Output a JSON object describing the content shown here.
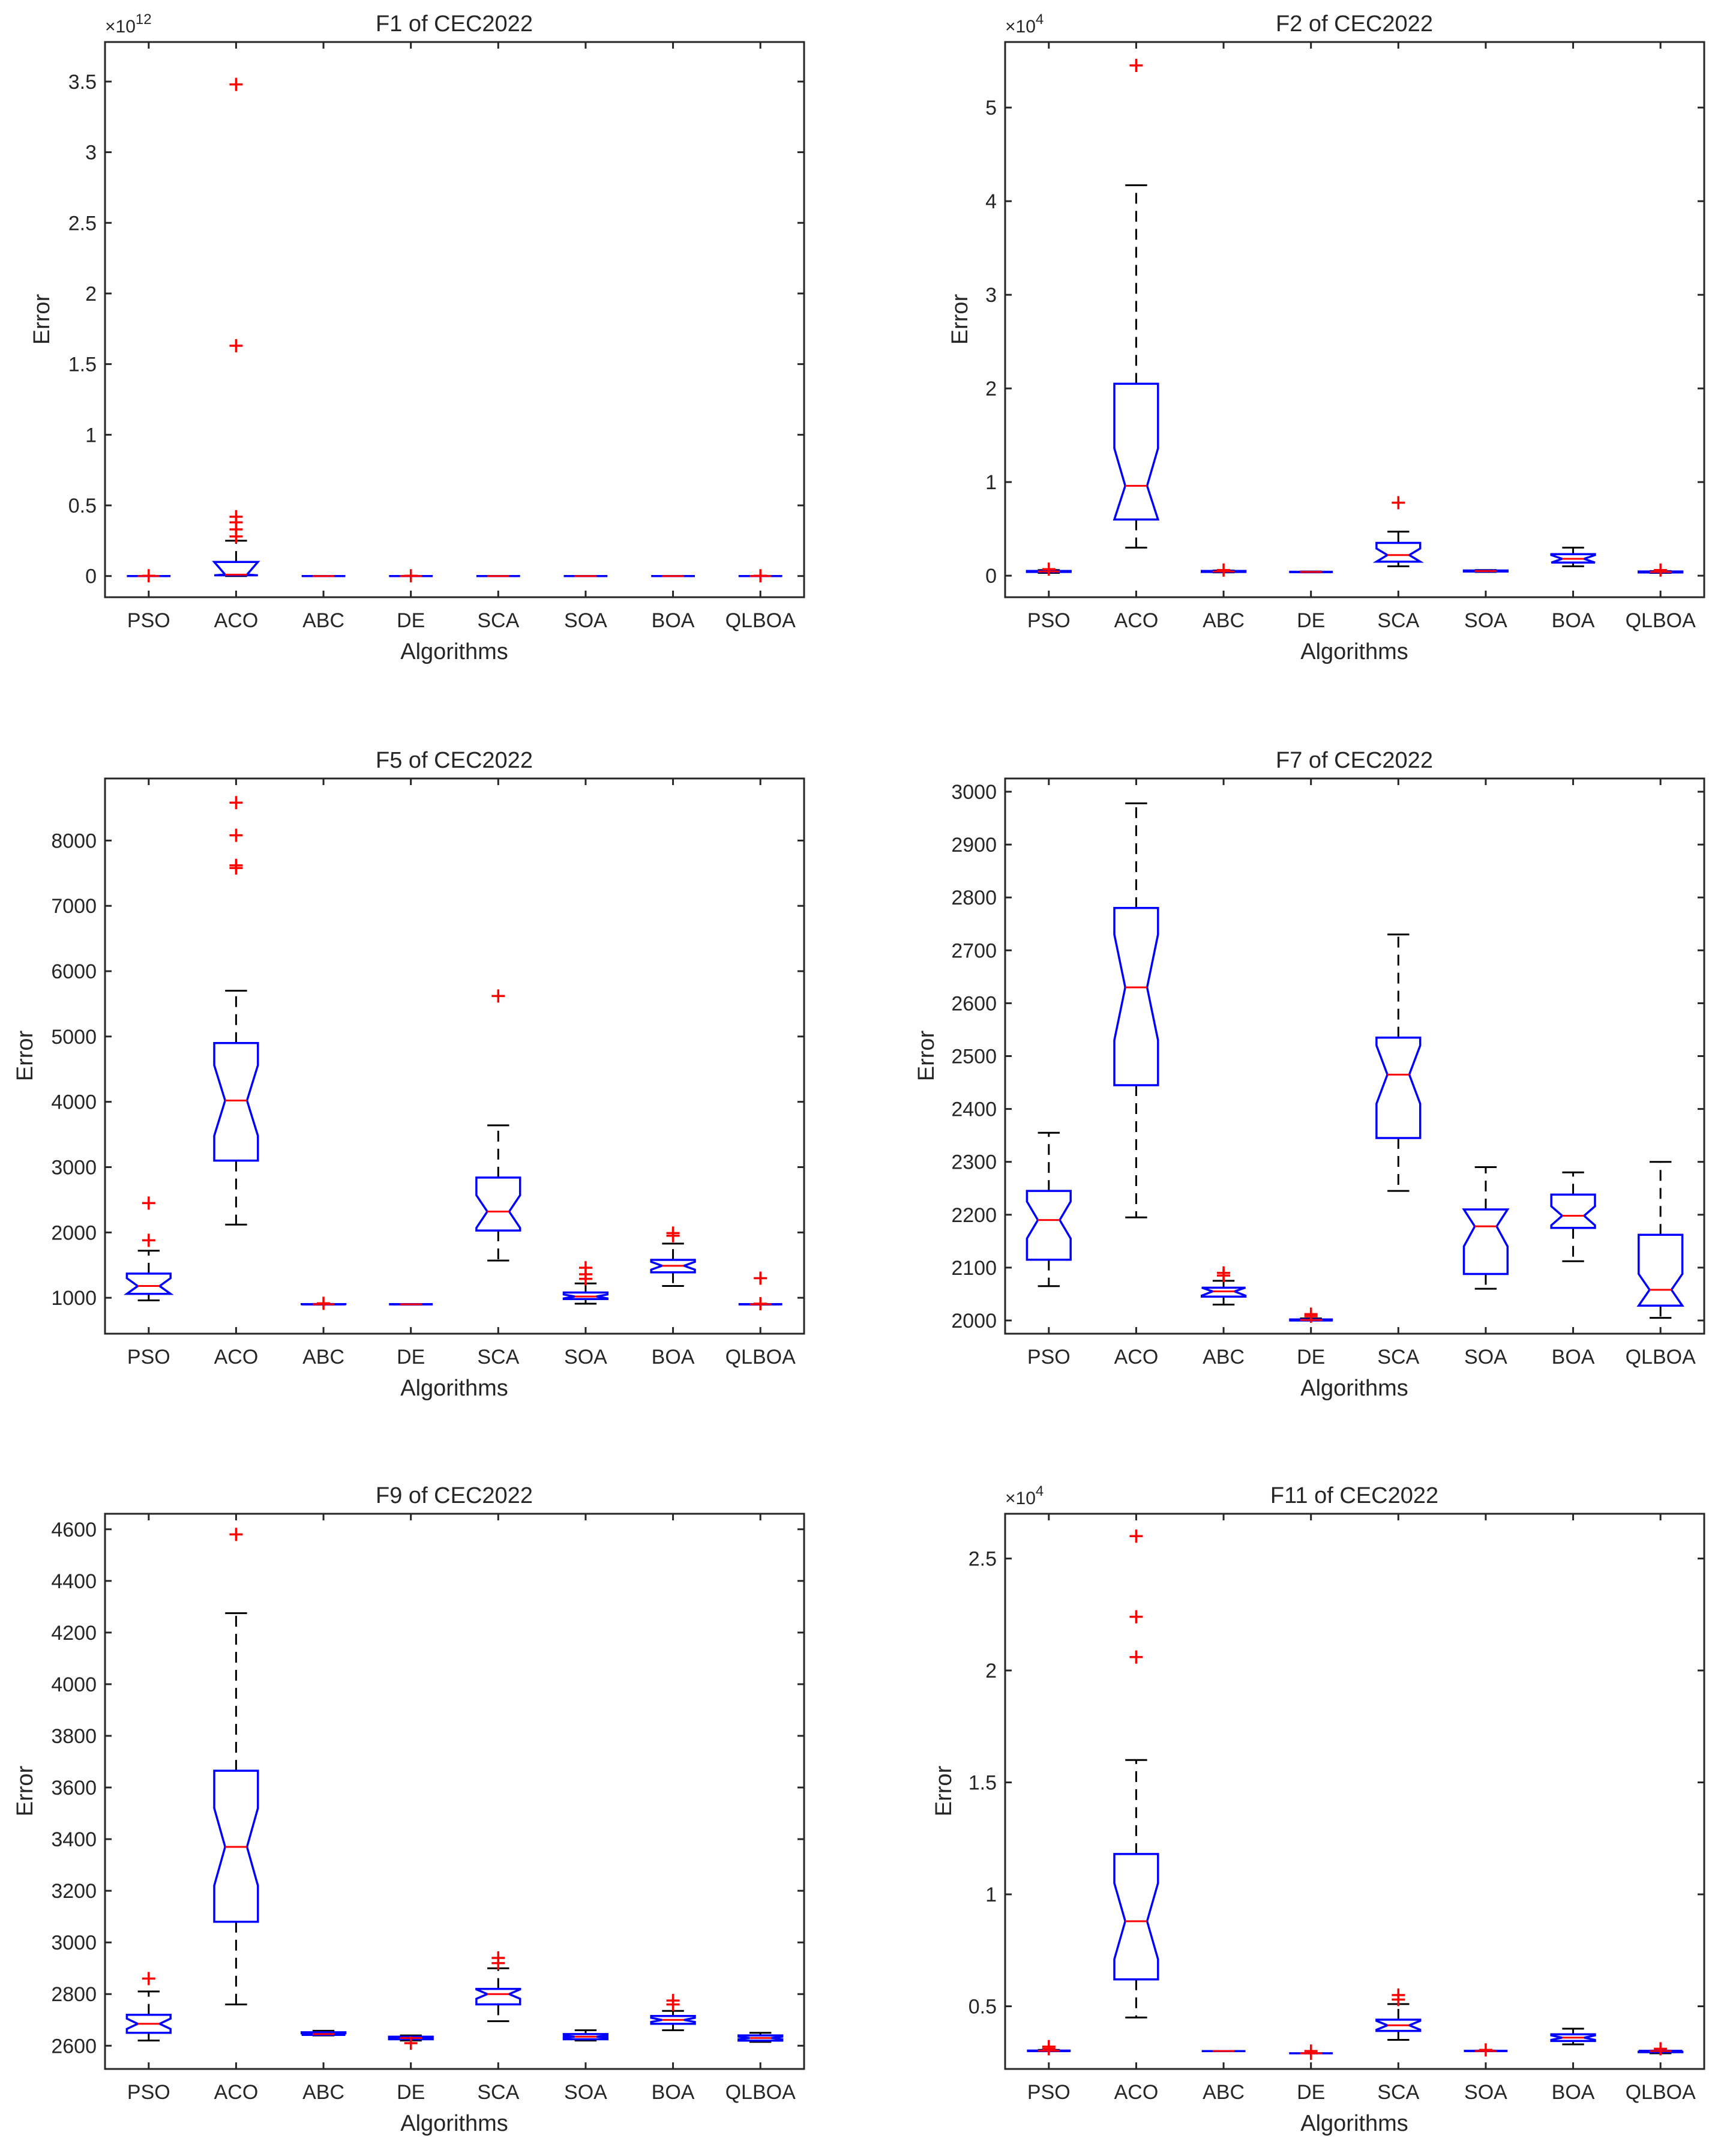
{
  "colors": {
    "box": "#0000ff",
    "median": "#ff0000",
    "outlier": "#ff0000",
    "whisker": "#000000",
    "axis": "#262626"
  },
  "chart_data": [
    {
      "type": "boxplot",
      "title": "F1 of CEC2022",
      "xlabel": "Algorithms",
      "ylabel": "Error",
      "categories": [
        "PSO",
        "ACO",
        "ABC",
        "DE",
        "SCA",
        "SOA",
        "BOA",
        "QLBOA"
      ],
      "ylim": [
        -0.15,
        3.78
      ],
      "yticks": [
        0,
        0.5,
        1,
        1.5,
        2,
        2.5,
        3,
        3.5
      ],
      "ytick_labels": [
        "0",
        "0.5",
        "1",
        "1.5",
        "2",
        "2.5",
        "3",
        "3.5"
      ],
      "exponent": "12",
      "boxes": [
        {
          "name": "PSO",
          "lw": 0,
          "q1": 0,
          "med": 0,
          "q3": 0,
          "uw": 0,
          "notch": 0,
          "outliers": [
            0.002
          ]
        },
        {
          "name": "ACO",
          "lw": 0,
          "q1": 0.005,
          "med": 0.01,
          "q3": 0.1,
          "uw": 0.25,
          "notch": 0.1,
          "outliers": [
            0.28,
            0.33,
            0.38,
            0.42,
            1.63,
            3.48
          ]
        },
        {
          "name": "ABC",
          "lw": 0,
          "q1": 0,
          "med": 0,
          "q3": 0,
          "uw": 0,
          "notch": 0,
          "outliers": []
        },
        {
          "name": "DE",
          "lw": 0,
          "q1": 0,
          "med": 0,
          "q3": 0,
          "uw": 0,
          "notch": 0,
          "outliers": [
            0.002
          ]
        },
        {
          "name": "SCA",
          "lw": 0,
          "q1": 0,
          "med": 0,
          "q3": 0,
          "uw": 0,
          "notch": 0,
          "outliers": []
        },
        {
          "name": "SOA",
          "lw": 0,
          "q1": 0,
          "med": 0,
          "q3": 0,
          "uw": 0,
          "notch": 0,
          "outliers": []
        },
        {
          "name": "BOA",
          "lw": 0,
          "q1": 0,
          "med": 0,
          "q3": 0,
          "uw": 0,
          "notch": 0,
          "outliers": []
        },
        {
          "name": "QLBOA",
          "lw": 0,
          "q1": 0,
          "med": 0,
          "q3": 0,
          "uw": 0,
          "notch": 0,
          "outliers": [
            0.002
          ]
        }
      ]
    },
    {
      "type": "boxplot",
      "title": "F2 of CEC2022",
      "xlabel": "Algorithms",
      "ylabel": "Error",
      "categories": [
        "PSO",
        "ACO",
        "ABC",
        "DE",
        "SCA",
        "SOA",
        "BOA",
        "QLBOA"
      ],
      "ylim": [
        -0.23,
        5.7
      ],
      "yticks": [
        0,
        1,
        2,
        3,
        4,
        5
      ],
      "ytick_labels": [
        "0",
        "1",
        "2",
        "3",
        "4",
        "5"
      ],
      "exponent": "4",
      "boxes": [
        {
          "name": "PSO",
          "lw": 0.03,
          "q1": 0.04,
          "med": 0.045,
          "q3": 0.05,
          "uw": 0.06,
          "notch": 0.004,
          "outliers": [
            0.07
          ]
        },
        {
          "name": "ACO",
          "lw": 0.3,
          "q1": 0.6,
          "med": 0.96,
          "q3": 2.05,
          "uw": 4.17,
          "notch": 0.4,
          "outliers": [
            5.45
          ]
        },
        {
          "name": "ABC",
          "lw": 0.035,
          "q1": 0.04,
          "med": 0.045,
          "q3": 0.05,
          "uw": 0.055,
          "notch": 0.003,
          "outliers": [
            0.06
          ]
        },
        {
          "name": "DE",
          "lw": 0.035,
          "q1": 0.038,
          "med": 0.04,
          "q3": 0.042,
          "uw": 0.045,
          "notch": 0.002,
          "outliers": []
        },
        {
          "name": "SCA",
          "lw": 0.1,
          "q1": 0.15,
          "med": 0.22,
          "q3": 0.35,
          "uw": 0.47,
          "notch": 0.07,
          "outliers": [
            0.78
          ]
        },
        {
          "name": "SOA",
          "lw": 0.04,
          "q1": 0.045,
          "med": 0.05,
          "q3": 0.055,
          "uw": 0.06,
          "notch": 0.003,
          "outliers": []
        },
        {
          "name": "BOA",
          "lw": 0.1,
          "q1": 0.14,
          "med": 0.18,
          "q3": 0.23,
          "uw": 0.3,
          "notch": 0.04,
          "outliers": []
        },
        {
          "name": "QLBOA",
          "lw": 0.03,
          "q1": 0.035,
          "med": 0.04,
          "q3": 0.045,
          "uw": 0.05,
          "notch": 0.003,
          "outliers": [
            0.06
          ]
        }
      ]
    },
    {
      "type": "boxplot",
      "title": "F5 of CEC2022",
      "xlabel": "Algorithms",
      "ylabel": "Error",
      "categories": [
        "PSO",
        "ACO",
        "ABC",
        "DE",
        "SCA",
        "SOA",
        "BOA",
        "QLBOA"
      ],
      "ylim": [
        450,
        8950
      ],
      "yticks": [
        1000,
        2000,
        3000,
        4000,
        5000,
        6000,
        7000,
        8000
      ],
      "ytick_labels": [
        "1000",
        "2000",
        "3000",
        "4000",
        "5000",
        "6000",
        "7000",
        "8000"
      ],
      "exponent": "",
      "boxes": [
        {
          "name": "PSO",
          "lw": 960,
          "q1": 1060,
          "med": 1180,
          "q3": 1370,
          "uw": 1720,
          "notch": 120,
          "outliers": [
            1880,
            2450
          ]
        },
        {
          "name": "ACO",
          "lw": 2120,
          "q1": 3100,
          "med": 4020,
          "q3": 4900,
          "uw": 5700,
          "notch": 540,
          "outliers": [
            7580,
            7620,
            8080,
            8580
          ]
        },
        {
          "name": "ABC",
          "lw": 895,
          "q1": 898,
          "med": 900,
          "q3": 903,
          "uw": 906,
          "notch": 2,
          "outliers": [
            915
          ]
        },
        {
          "name": "DE",
          "lw": 895,
          "q1": 898,
          "med": 900,
          "q3": 902,
          "uw": 905,
          "notch": 2,
          "outliers": []
        },
        {
          "name": "SCA",
          "lw": 1570,
          "q1": 2030,
          "med": 2320,
          "q3": 2840,
          "uw": 3640,
          "notch": 250,
          "outliers": [
            5620
          ]
        },
        {
          "name": "SOA",
          "lw": 910,
          "q1": 980,
          "med": 1020,
          "q3": 1080,
          "uw": 1220,
          "notch": 30,
          "outliers": [
            1290,
            1360,
            1460
          ]
        },
        {
          "name": "BOA",
          "lw": 1180,
          "q1": 1390,
          "med": 1490,
          "q3": 1580,
          "uw": 1830,
          "notch": 60,
          "outliers": [
            1950,
            1990
          ]
        },
        {
          "name": "QLBOA",
          "lw": 895,
          "q1": 898,
          "med": 900,
          "q3": 902,
          "uw": 905,
          "notch": 2,
          "outliers": [
            910,
            1300
          ]
        }
      ]
    },
    {
      "type": "boxplot",
      "title": "F7 of CEC2022",
      "xlabel": "Algorithms",
      "ylabel": "Error",
      "categories": [
        "PSO",
        "ACO",
        "ABC",
        "DE",
        "SCA",
        "SOA",
        "BOA",
        "QLBOA"
      ],
      "ylim": [
        1975,
        3025
      ],
      "yticks": [
        2000,
        2100,
        2200,
        2300,
        2400,
        2500,
        2600,
        2700,
        2800,
        2900,
        3000
      ],
      "ytick_labels": [
        "2000",
        "2100",
        "2200",
        "2300",
        "2400",
        "2500",
        "2600",
        "2700",
        "2800",
        "2900",
        "3000"
      ],
      "exponent": "",
      "boxes": [
        {
          "name": "PSO",
          "lw": 2065,
          "q1": 2115,
          "med": 2190,
          "q3": 2245,
          "uw": 2355,
          "notch": 35,
          "outliers": []
        },
        {
          "name": "ACO",
          "lw": 2195,
          "q1": 2445,
          "med": 2630,
          "q3": 2780,
          "uw": 2978,
          "notch": 100,
          "outliers": []
        },
        {
          "name": "ABC",
          "lw": 2030,
          "q1": 2045,
          "med": 2055,
          "q3": 2062,
          "uw": 2075,
          "notch": 8,
          "outliers": [
            2085,
            2090
          ]
        },
        {
          "name": "DE",
          "lw": 2000,
          "q1": 2000,
          "med": 2001,
          "q3": 2002,
          "uw": 2004,
          "notch": 1,
          "outliers": [
            2008,
            2012
          ]
        },
        {
          "name": "SCA",
          "lw": 2245,
          "q1": 2345,
          "med": 2465,
          "q3": 2535,
          "uw": 2730,
          "notch": 55,
          "outliers": []
        },
        {
          "name": "SOA",
          "lw": 2060,
          "q1": 2088,
          "med": 2178,
          "q3": 2210,
          "uw": 2290,
          "notch": 38,
          "outliers": []
        },
        {
          "name": "BOA",
          "lw": 2112,
          "q1": 2175,
          "med": 2198,
          "q3": 2238,
          "uw": 2280,
          "notch": 18,
          "outliers": []
        },
        {
          "name": "QLBOA",
          "lw": 2005,
          "q1": 2028,
          "med": 2058,
          "q3": 2162,
          "uw": 2300,
          "notch": 30,
          "outliers": []
        }
      ]
    },
    {
      "type": "boxplot",
      "title": "F9 of CEC2022",
      "xlabel": "Algorithms",
      "ylabel": "Error",
      "categories": [
        "PSO",
        "ACO",
        "ABC",
        "DE",
        "SCA",
        "SOA",
        "BOA",
        "QLBOA"
      ],
      "ylim": [
        2510,
        4660
      ],
      "yticks": [
        2600,
        2800,
        3000,
        3200,
        3400,
        3600,
        3800,
        4000,
        4200,
        4400,
        4600
      ],
      "ytick_labels": [
        "2600",
        "2800",
        "3000",
        "3200",
        "3400",
        "3600",
        "3800",
        "4000",
        "4200",
        "4400",
        "4600"
      ],
      "exponent": "",
      "boxes": [
        {
          "name": "PSO",
          "lw": 2620,
          "q1": 2650,
          "med": 2685,
          "q3": 2720,
          "uw": 2810,
          "notch": 20,
          "outliers": [
            2860
          ]
        },
        {
          "name": "ACO",
          "lw": 2760,
          "q1": 3080,
          "med": 3370,
          "q3": 3665,
          "uw": 4275,
          "notch": 150,
          "outliers": [
            4580
          ]
        },
        {
          "name": "ABC",
          "lw": 2640,
          "q1": 2642,
          "med": 2645,
          "q3": 2652,
          "uw": 2658,
          "notch": 3,
          "outliers": []
        },
        {
          "name": "DE",
          "lw": 2620,
          "q1": 2625,
          "med": 2630,
          "q3": 2635,
          "uw": 2640,
          "notch": 3,
          "outliers": [
            2610
          ]
        },
        {
          "name": "SCA",
          "lw": 2695,
          "q1": 2760,
          "med": 2800,
          "q3": 2820,
          "uw": 2900,
          "notch": 18,
          "outliers": [
            2920,
            2940
          ]
        },
        {
          "name": "SOA",
          "lw": 2620,
          "q1": 2625,
          "med": 2635,
          "q3": 2645,
          "uw": 2660,
          "notch": 4,
          "outliers": []
        },
        {
          "name": "BOA",
          "lw": 2660,
          "q1": 2685,
          "med": 2700,
          "q3": 2715,
          "uw": 2735,
          "notch": 8,
          "outliers": [
            2760,
            2775
          ]
        },
        {
          "name": "QLBOA",
          "lw": 2615,
          "q1": 2620,
          "med": 2630,
          "q3": 2640,
          "uw": 2650,
          "notch": 5,
          "outliers": []
        }
      ]
    },
    {
      "type": "boxplot",
      "title": "F11 of CEC2022",
      "xlabel": "Algorithms",
      "ylabel": "Error",
      "categories": [
        "PSO",
        "ACO",
        "ABC",
        "DE",
        "SCA",
        "SOA",
        "BOA",
        "QLBOA"
      ],
      "ylim": [
        0.22,
        2.7
      ],
      "yticks": [
        0.5,
        1,
        1.5,
        2,
        2.5
      ],
      "ytick_labels": [
        "0.5",
        "1",
        "1.5",
        "2",
        "2.5"
      ],
      "exponent": "4",
      "boxes": [
        {
          "name": "PSO",
          "lw": 0.3,
          "q1": 0.3,
          "med": 0.301,
          "q3": 0.302,
          "uw": 0.305,
          "notch": 0.001,
          "outliers": [
            0.31,
            0.32
          ]
        },
        {
          "name": "ACO",
          "lw": 0.45,
          "q1": 0.62,
          "med": 0.88,
          "q3": 1.18,
          "uw": 1.6,
          "notch": 0.17,
          "outliers": [
            2.06,
            2.24,
            2.6
          ]
        },
        {
          "name": "ABC",
          "lw": 0.3,
          "q1": 0.3,
          "med": 0.3,
          "q3": 0.3,
          "uw": 0.3,
          "notch": 0,
          "outliers": []
        },
        {
          "name": "DE",
          "lw": 0.29,
          "q1": 0.29,
          "med": 0.29,
          "q3": 0.29,
          "uw": 0.29,
          "notch": 0,
          "outliers": [
            0.29,
            0.3
          ]
        },
        {
          "name": "SCA",
          "lw": 0.35,
          "q1": 0.39,
          "med": 0.415,
          "q3": 0.44,
          "uw": 0.51,
          "notch": 0.02,
          "outliers": [
            0.53,
            0.55
          ]
        },
        {
          "name": "SOA",
          "lw": 0.3,
          "q1": 0.3,
          "med": 0.3,
          "q3": 0.301,
          "uw": 0.302,
          "notch": 0.001,
          "outliers": [
            0.305
          ]
        },
        {
          "name": "BOA",
          "lw": 0.33,
          "q1": 0.345,
          "med": 0.36,
          "q3": 0.375,
          "uw": 0.4,
          "notch": 0.01,
          "outliers": []
        },
        {
          "name": "QLBOA",
          "lw": 0.29,
          "q1": 0.295,
          "med": 0.3,
          "q3": 0.301,
          "uw": 0.302,
          "notch": 0.003,
          "outliers": [
            0.31
          ]
        }
      ]
    }
  ]
}
